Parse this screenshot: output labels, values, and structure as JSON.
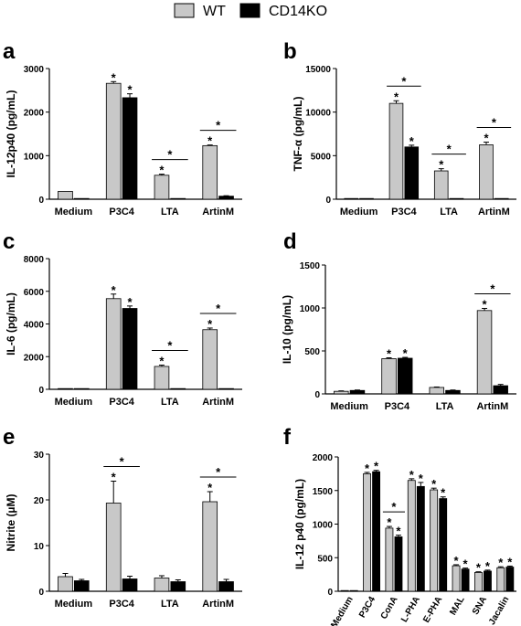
{
  "legend": {
    "items": [
      {
        "label": "WT",
        "color": "#c8c8c8"
      },
      {
        "label": "CD14KO",
        "color": "#000000"
      }
    ]
  },
  "chart_data": [
    {
      "panel": "a",
      "type": "bar",
      "ylabel": "IL-12p40 (pg/mL)",
      "ylim": [
        0,
        3000
      ],
      "yticks": [
        "0",
        "1000",
        "2000",
        "3000"
      ],
      "categories": [
        "Medium",
        "P3C4",
        "LTA",
        "ArtinM"
      ],
      "series": [
        {
          "name": "WT",
          "values": [
            180,
            2660,
            550,
            1230
          ],
          "errors": [
            0,
            40,
            25,
            15
          ]
        },
        {
          "name": "CD14KO",
          "values": [
            5,
            2330,
            10,
            70
          ],
          "errors": [
            0,
            90,
            0,
            10
          ]
        }
      ],
      "star_above": [
        [
          false,
          true,
          true,
          true
        ],
        [
          false,
          true,
          false,
          false
        ]
      ],
      "comparisons": [
        2,
        3
      ]
    },
    {
      "panel": "b",
      "type": "bar",
      "ylabel": "TNF-α (pg/mL)",
      "ylim": [
        0,
        15000
      ],
      "yticks": [
        "0",
        "5000",
        "10000",
        "15000"
      ],
      "categories": [
        "Medium",
        "P3C4",
        "LTA",
        "ArtinM"
      ],
      "series": [
        {
          "name": "WT",
          "values": [
            10,
            11000,
            3250,
            6250
          ],
          "errors": [
            0,
            300,
            250,
            300
          ]
        },
        {
          "name": "CD14KO",
          "values": [
            10,
            6000,
            10,
            20
          ],
          "errors": [
            0,
            200,
            0,
            0
          ]
        }
      ],
      "star_above": [
        [
          false,
          true,
          true,
          true
        ],
        [
          false,
          true,
          false,
          false
        ]
      ],
      "comparisons": [
        1,
        2,
        3
      ]
    },
    {
      "panel": "c",
      "type": "bar",
      "ylabel": "IL-6 (pg/mL)",
      "ylim": [
        0,
        8000
      ],
      "yticks": [
        "0",
        "2000",
        "4000",
        "6000",
        "8000"
      ],
      "categories": [
        "Medium",
        "P3C4",
        "LTA",
        "ArtinM"
      ],
      "series": [
        {
          "name": "WT",
          "values": [
            30,
            5550,
            1400,
            3650
          ],
          "errors": [
            0,
            280,
            80,
            100
          ]
        },
        {
          "name": "CD14KO",
          "values": [
            30,
            4950,
            10,
            10
          ],
          "errors": [
            0,
            150,
            0,
            0
          ]
        }
      ],
      "star_above": [
        [
          false,
          true,
          true,
          true
        ],
        [
          false,
          true,
          false,
          false
        ]
      ],
      "comparisons": [
        2,
        3
      ]
    },
    {
      "panel": "d",
      "type": "bar",
      "ylabel": "IL-10 (pg/mL)",
      "ylim": [
        0,
        1500
      ],
      "yticks": [
        "0",
        "500",
        "1000",
        "1500"
      ],
      "categories": [
        "Medium",
        "P3C4",
        "LTA",
        "ArtinM"
      ],
      "series": [
        {
          "name": "WT",
          "values": [
            30,
            410,
            75,
            970
          ],
          "errors": [
            5,
            10,
            5,
            25
          ]
        },
        {
          "name": "CD14KO",
          "values": [
            40,
            415,
            40,
            95
          ],
          "errors": [
            5,
            10,
            5,
            15
          ]
        }
      ],
      "star_above": [
        [
          false,
          true,
          false,
          true
        ],
        [
          false,
          true,
          false,
          false
        ]
      ],
      "comparisons": [
        3
      ]
    },
    {
      "panel": "e",
      "type": "bar",
      "ylabel": "Nitrite (µM)",
      "ylim": [
        0,
        30
      ],
      "yticks": [
        "0",
        "10",
        "20",
        "30"
      ],
      "categories": [
        "Medium",
        "P3C4",
        "LTA",
        "ArtinM"
      ],
      "series": [
        {
          "name": "WT",
          "values": [
            3.2,
            19.3,
            2.9,
            19.6
          ],
          "errors": [
            0.7,
            4.8,
            0.5,
            2.2
          ]
        },
        {
          "name": "CD14KO",
          "values": [
            2.3,
            2.7,
            2.1,
            2.1
          ],
          "errors": [
            0.3,
            0.6,
            0.4,
            0.5
          ]
        }
      ],
      "star_above": [
        [
          false,
          true,
          false,
          true
        ],
        [
          false,
          false,
          false,
          false
        ]
      ],
      "comparisons": [
        1,
        3
      ]
    },
    {
      "panel": "f",
      "type": "bar",
      "ylabel": "IL-12 p40 (pg/mL)",
      "ylim": [
        0,
        2000
      ],
      "yticks": [
        "0",
        "500",
        "1000",
        "1500",
        "2000"
      ],
      "categories": [
        "Medium",
        "P3C4",
        "ConA",
        "L-PHA",
        "E-PHA",
        "MAL",
        "SNA",
        "Jacalin"
      ],
      "series": [
        {
          "name": "WT",
          "values": [
            0,
            1750,
            940,
            1650,
            1510,
            380,
            280,
            350
          ],
          "errors": [
            0,
            20,
            25,
            25,
            25,
            15,
            10,
            15
          ]
        },
        {
          "name": "CD14KO",
          "values": [
            0,
            1780,
            810,
            1560,
            1380,
            330,
            300,
            360
          ],
          "errors": [
            0,
            20,
            25,
            60,
            25,
            15,
            15,
            15
          ]
        }
      ],
      "star_above": [
        [
          false,
          true,
          true,
          true,
          true,
          true,
          true,
          true
        ],
        [
          false,
          true,
          true,
          true,
          true,
          true,
          true,
          true
        ]
      ],
      "comparisons": [
        2
      ]
    }
  ]
}
